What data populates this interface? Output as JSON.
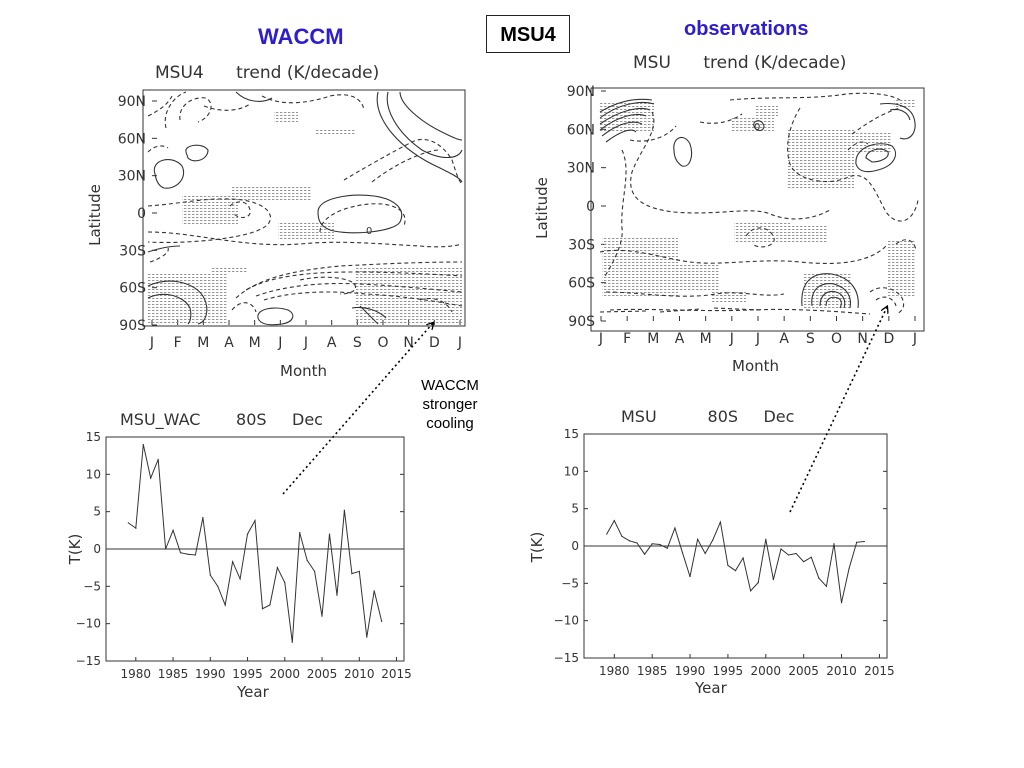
{
  "slide": {
    "left_heading": "WACCM",
    "center_box": "MSU4",
    "right_heading": "observations",
    "annotation": [
      "WACCM",
      "stronger",
      "cooling"
    ]
  },
  "colors": {
    "heading": "#2d1dcc",
    "line": "#333333",
    "stipple": "#999999"
  },
  "chart_data": [
    {
      "type": "contour",
      "title": "MSU4      trend (K/decade)",
      "xlabel": "Month",
      "ylabel": "Latitude",
      "x_ticks": [
        "J",
        "F",
        "M",
        "A",
        "M",
        "J",
        "J",
        "A",
        "S",
        "O",
        "N",
        "D",
        "J"
      ],
      "y_ticks": [
        "90N",
        "60N",
        "30N",
        "0",
        "30S",
        "60S",
        "90S"
      ],
      "ylim": [
        -90,
        90
      ],
      "contour_labels": [
        "0"
      ],
      "notes": "solid = positive trend, dashed = negative trend, stippled = significant"
    },
    {
      "type": "contour",
      "title": "MSU      trend (K/decade)",
      "xlabel": "Month",
      "ylabel": "Latitude",
      "x_ticks": [
        "J",
        "F",
        "M",
        "A",
        "M",
        "J",
        "J",
        "A",
        "S",
        "O",
        "N",
        "D",
        "J"
      ],
      "y_ticks": [
        "90N",
        "60N",
        "30N",
        "0",
        "30S",
        "60S",
        "90S"
      ],
      "ylim": [
        -90,
        90
      ],
      "contour_labels": [
        "0"
      ],
      "notes": "solid = positive trend, dashed = negative trend, stippled = significant"
    },
    {
      "type": "line",
      "title": "MSU_WAC       80S     Dec",
      "xlabel": "Year",
      "ylabel": "T(K)",
      "xlim": [
        1976,
        2016
      ],
      "ylim": [
        -15,
        15
      ],
      "x_ticks": [
        1980,
        1985,
        1990,
        1995,
        2000,
        2005,
        2010,
        2015
      ],
      "y_ticks": [
        15,
        10,
        5,
        0,
        -5,
        -10,
        -15
      ],
      "x": [
        1979,
        1980,
        1981,
        1982,
        1983,
        1984,
        1985,
        1986,
        1987,
        1988,
        1989,
        1990,
        1991,
        1992,
        1993,
        1994,
        1995,
        1996,
        1997,
        1998,
        1999,
        2000,
        2001,
        2002,
        2003,
        2004,
        2005,
        2006,
        2007,
        2008,
        2009,
        2010,
        2011,
        2012,
        2013
      ],
      "values": [
        3.5,
        2.8,
        14.0,
        9.5,
        12.0,
        0.0,
        2.5,
        -0.5,
        -0.7,
        -0.8,
        4.2,
        -3.5,
        -5.0,
        -7.5,
        -1.7,
        -4.0,
        2.0,
        3.8,
        -8.0,
        -7.5,
        -2.5,
        -4.5,
        -12.5,
        2.2,
        -1.5,
        -3.0,
        -9.0,
        2.0,
        -6.2,
        5.2,
        -3.3,
        -3.0,
        -11.8,
        -5.6,
        -9.7
      ]
    },
    {
      "type": "line",
      "title": "MSU          80S     Dec",
      "xlabel": "Year",
      "ylabel": "T(K)",
      "xlim": [
        1976,
        2016
      ],
      "ylim": [
        -15,
        15
      ],
      "x_ticks": [
        1980,
        1985,
        1990,
        1995,
        2000,
        2005,
        2010,
        2015
      ],
      "y_ticks": [
        15,
        10,
        5,
        0,
        -5,
        -10,
        -15
      ],
      "x": [
        1979,
        1980,
        1981,
        1982,
        1983,
        1984,
        1985,
        1986,
        1987,
        1988,
        1989,
        1990,
        1991,
        1992,
        1993,
        1994,
        1995,
        1996,
        1997,
        1998,
        1999,
        2000,
        2001,
        2002,
        2003,
        2004,
        2005,
        2006,
        2007,
        2008,
        2009,
        2010,
        2011,
        2012,
        2013
      ],
      "values": [
        1.6,
        3.4,
        1.3,
        0.7,
        0.4,
        -1.1,
        0.3,
        0.2,
        -0.3,
        2.4,
        -0.9,
        -4.1,
        0.9,
        -1.0,
        0.8,
        3.2,
        -2.6,
        -3.3,
        -1.6,
        -6.0,
        -4.9,
        0.9,
        -4.5,
        -0.4,
        -1.2,
        -1.0,
        -2.1,
        -1.5,
        -4.3,
        -5.4,
        0.3,
        -7.6,
        -3.0,
        0.5,
        0.6
      ]
    }
  ]
}
